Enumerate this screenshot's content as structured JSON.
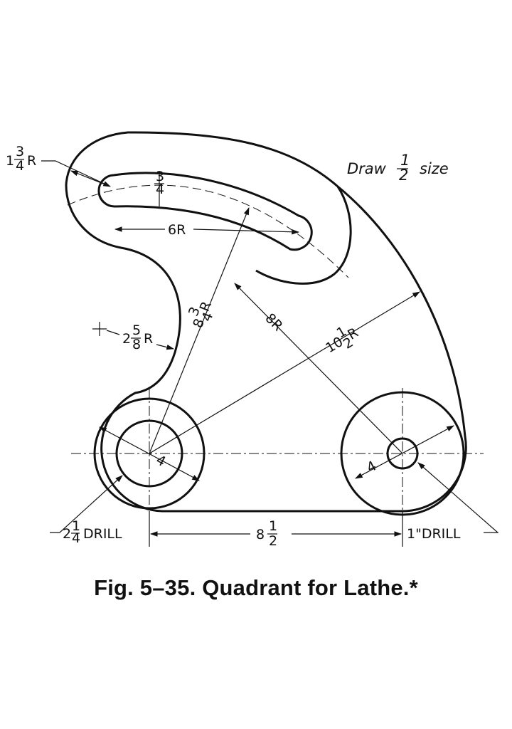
{
  "note": {
    "prefix": "Draw",
    "num": "1",
    "den": "2",
    "suffix": "size"
  },
  "dims": {
    "slot_width": {
      "num": "3",
      "den": "4"
    },
    "outer_radius": {
      "whole": "1",
      "num": "3",
      "den": "4",
      "unit": "R"
    },
    "slot_radius": "6R",
    "arc_radius": {
      "whole": "8",
      "num": "3",
      "den": "4",
      "unit": "R"
    },
    "center_radius": "8R",
    "large_radius": {
      "whole": "10",
      "num": "1",
      "den": "2",
      "unit": "R"
    },
    "fillet_radius": {
      "whole": "2",
      "num": "5",
      "den": "8",
      "unit": "R"
    },
    "left_boss": "4",
    "right_boss": "4",
    "left_drill": {
      "whole": "2",
      "num": "1",
      "den": "4",
      "label": "DRILL"
    },
    "spacing": {
      "whole": "8",
      "num": "1",
      "den": "2"
    },
    "right_drill": {
      "label": "1\"DRILL"
    }
  },
  "caption": "Fig. 5–35. Quadrant for Lathe.*"
}
